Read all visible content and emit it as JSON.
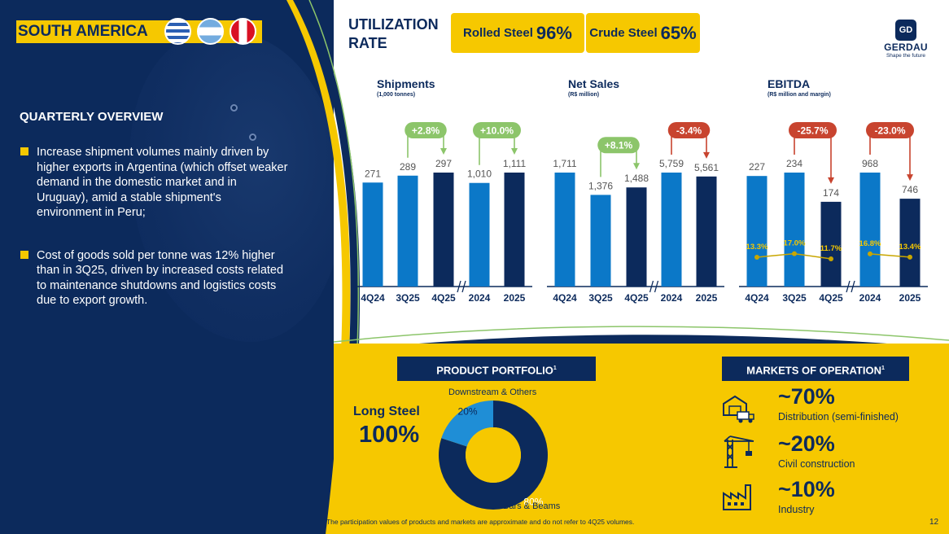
{
  "region": {
    "title": "SOUTH AMERICA",
    "flags": [
      "uruguay-flag-icon",
      "argentina-flag-icon",
      "peru-flag-icon"
    ]
  },
  "overview": {
    "title": "QUARTERLY OVERVIEW",
    "bullets": [
      "Increase shipment volumes mainly driven by higher exports in Argentina (which offset weaker demand in the domestic market and in Uruguay), amid a stable shipment's environment in Peru;",
      "Cost of goods sold per tonne was 12% higher than in 3Q25, driven by increased costs related to maintenance shutdowns and logistics costs due to export growth."
    ]
  },
  "utilization": {
    "title_line1": "UTILIZATION",
    "title_line2": "RATE",
    "items": [
      {
        "label": "Rolled Steel",
        "value": "96%"
      },
      {
        "label": "Crude Steel",
        "value": "65%"
      }
    ]
  },
  "logo": {
    "name": "GERDAU",
    "tagline": "Shape the future",
    "mark": "GD"
  },
  "colors": {
    "navy": "#0c2a5c",
    "blue": "#0b78c8",
    "yellow": "#f6c800",
    "green": "#8cc56a",
    "red": "#c8442f"
  },
  "chart_data": [
    {
      "type": "bar",
      "title": "Shipments",
      "subtitle": "(1,000 tonnes)",
      "categories": [
        "4Q24",
        "3Q25",
        "4Q25",
        "2024",
        "2025"
      ],
      "values": [
        271,
        289,
        297,
        1010,
        1111
      ],
      "value_labels": [
        "271",
        "289",
        "297",
        "1,010",
        "1,111"
      ],
      "scale_groups": [
        [
          0,
          1,
          2
        ],
        [
          3,
          4
        ]
      ],
      "annotations": [
        {
          "label": "+2.8%",
          "from": 1,
          "to": 2,
          "sentiment": "positive"
        },
        {
          "label": "+10.0%",
          "from": 3,
          "to": 4,
          "sentiment": "positive"
        }
      ]
    },
    {
      "type": "bar",
      "title": "Net Sales",
      "subtitle": "(R$ million)",
      "categories": [
        "4Q24",
        "3Q25",
        "4Q25",
        "2024",
        "2025"
      ],
      "values": [
        1711,
        1376,
        1488,
        5759,
        5561
      ],
      "value_labels": [
        "1,711",
        "1,376",
        "1,488",
        "5,759",
        "5,561"
      ],
      "scale_groups": [
        [
          0,
          1,
          2
        ],
        [
          3,
          4
        ]
      ],
      "annotations": [
        {
          "label": "+8.1%",
          "from": 1,
          "to": 2,
          "sentiment": "positive"
        },
        {
          "label": "-3.4%",
          "from": 3,
          "to": 4,
          "sentiment": "negative"
        }
      ]
    },
    {
      "type": "bar",
      "title": "EBITDA",
      "subtitle": "(R$ million and margin)",
      "categories": [
        "4Q24",
        "3Q25",
        "4Q25",
        "2024",
        "2025"
      ],
      "values": [
        227,
        234,
        174,
        968,
        746
      ],
      "value_labels": [
        "227",
        "234",
        "174",
        "968",
        "746"
      ],
      "margins": [
        13.3,
        17.0,
        11.7,
        16.8,
        13.4
      ],
      "margin_labels": [
        "13.3%",
        "17.0%",
        "11.7%",
        "16.8%",
        "13.4%"
      ],
      "scale_groups": [
        [
          0,
          1,
          2
        ],
        [
          3,
          4
        ]
      ],
      "annotations": [
        {
          "label": "-25.7%",
          "from": 1,
          "to": 2,
          "sentiment": "negative"
        },
        {
          "label": "-23.0%",
          "from": 3,
          "to": 4,
          "sentiment": "negative"
        }
      ]
    },
    {
      "type": "pie",
      "title": "PRODUCT PORTFOLIO",
      "title_sup": "1",
      "categories": [
        "Bars & Beams",
        "Downstream & Others"
      ],
      "values": [
        80,
        20
      ],
      "value_labels": [
        "80%",
        "20%"
      ],
      "colors": [
        "#0c2a5c",
        "#1f8ed6"
      ]
    }
  ],
  "portfolio": {
    "segment_label": "Long Steel",
    "segment_value": "100%"
  },
  "markets": {
    "title": "MARKETS OF OPERATION",
    "title_sup": "1",
    "items": [
      {
        "value": "~70%",
        "label": "Distribution (semi-finished)",
        "icon": "warehouse-truck-icon"
      },
      {
        "value": "~20%",
        "label": "Civil construction",
        "icon": "crane-icon"
      },
      {
        "value": "~10%",
        "label": "Industry",
        "icon": "factory-icon"
      }
    ]
  },
  "footnote_sup": "1",
  "footnote": "The participation values of products and markets are approximate and do not refer to 4Q25 volumes.",
  "page_number": "12"
}
